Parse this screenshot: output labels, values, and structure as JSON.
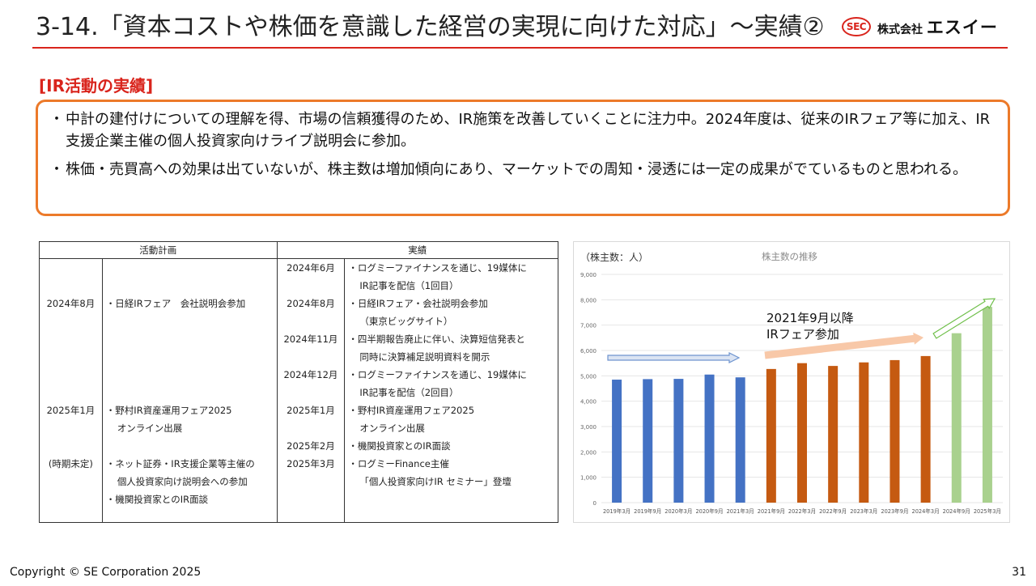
{
  "header": {
    "title": "3-14.「資本コストや株価を意識した経営の実現に向けた対応」〜実績②",
    "logo_mark": "SEC",
    "logo_prefix": "株式会社",
    "logo_name": "エスイー"
  },
  "section_label": "[IR活動の実績]",
  "summary": [
    "中計の建付けについての理解を得、市場の信頼獲得のため、IR施策を改善していくことに注力中。2024年度は、従来のIRフェア等に加え、IR支援企業主催の個人投資家向けライブ説明会に参加。",
    "株価・売買高への効果は出ていないが、株主数は増加傾向にあり、マーケットでの周知・浸透には一定の成果がでているものと思われる。"
  ],
  "table": {
    "headers": {
      "plan": "活動計画",
      "result": "実績"
    },
    "plan_dates": [
      "",
      "",
      "2024年8月",
      "",
      "",
      "",
      "",
      "",
      "2025年1月",
      "",
      "",
      "(時期未定)",
      "",
      ""
    ],
    "plan_items": [
      "",
      "",
      "・日経IRフェア　会社説明会参加",
      "",
      "",
      "",
      "",
      "",
      "・野村IR資産運用フェア2025",
      "オンライン出展",
      "",
      "・ネット証券・IR支援企業等主催の",
      "個人投資家向け説明会への参加",
      "・機関投資家とのIR面談"
    ],
    "result_dates": [
      "2024年6月",
      "",
      "2024年8月",
      "",
      "2024年11月",
      "",
      "2024年12月",
      "",
      "2025年1月",
      "",
      "2025年2月",
      "2025年3月",
      "",
      ""
    ],
    "result_items": [
      "・ログミーファイナンスを通じ、19媒体に",
      "IR記事を配信（1回目）",
      "・日経IRフェア・会社説明会参加",
      "（東京ビッグサイト）",
      "・四半期報告廃止に伴い、決算短信発表と",
      "同時に決算補足説明資料を開示",
      "・ログミーファイナンスを通じ、19媒体に",
      "IR記事を配信（2回目）",
      "・野村IR資産運用フェア2025",
      "オンライン出展",
      "・機関投資家とのIR面談",
      "・ログミーFinance主催",
      "「個人投資家向けIR セミナー」登壇",
      ""
    ]
  },
  "chart_data": {
    "type": "bar",
    "title": "株主数の推移",
    "ylabel": "（株主数：人）",
    "xlabel": "",
    "ylim": [
      0,
      9000
    ],
    "yticks": [
      "0",
      "1,000",
      "2,000",
      "3,000",
      "4,000",
      "5,000",
      "6,000",
      "7,000",
      "8,000",
      "9,000"
    ],
    "grid": true,
    "categories": [
      "2019年3月",
      "2019年9月",
      "2020年3月",
      "2020年9月",
      "2021年3月",
      "2021年9月",
      "2022年3月",
      "2022年9月",
      "2023年3月",
      "2023年9月",
      "2024年3月",
      "2024年9月",
      "2025年3月"
    ],
    "values": [
      4850,
      4870,
      4880,
      5050,
      4940,
      5270,
      5500,
      5390,
      5530,
      5620,
      5780,
      6680,
      7720
    ],
    "bar_colors": [
      "#4472c4",
      "#4472c4",
      "#4472c4",
      "#4472c4",
      "#4472c4",
      "#c55a11",
      "#c55a11",
      "#c55a11",
      "#c55a11",
      "#c55a11",
      "#c55a11",
      "#a9d18e",
      "#a9d18e"
    ],
    "annotation": [
      "2021年9月以降",
      "IRフェア参加"
    ]
  },
  "footer": {
    "copyright": "Copyright © SE Corporation 2025",
    "page_number": "31"
  }
}
